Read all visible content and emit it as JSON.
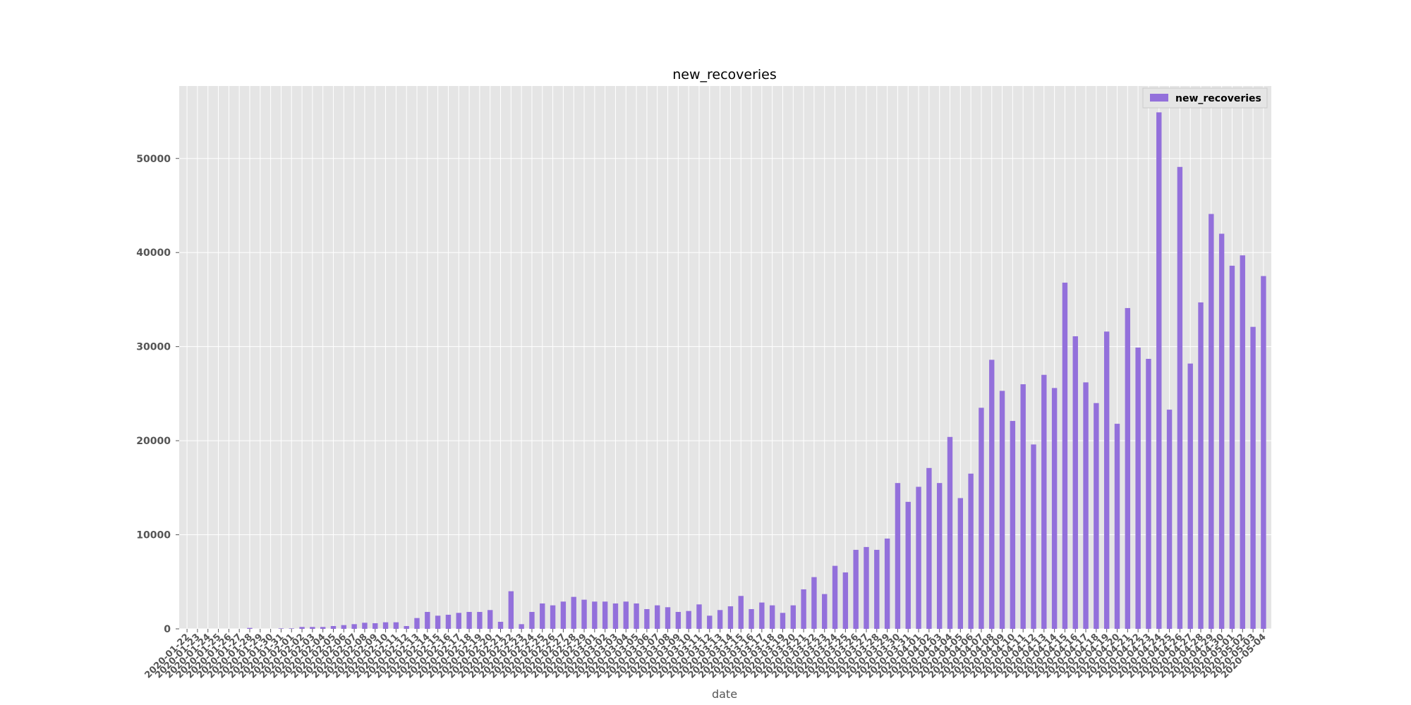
{
  "chart_data": {
    "type": "bar",
    "title": "new_recoveries",
    "xlabel": "date",
    "ylabel": "",
    "ylim": [
      0,
      57700
    ],
    "yticks": [
      0,
      10000,
      20000,
      30000,
      40000,
      50000
    ],
    "grid": true,
    "legend_position": "top-right",
    "style": "ggplot",
    "bar_color": "#9370DB",
    "categories": [
      "2020-01-22",
      "2020-01-23",
      "2020-01-24",
      "2020-01-25",
      "2020-01-26",
      "2020-01-27",
      "2020-01-28",
      "2020-01-29",
      "2020-01-30",
      "2020-01-31",
      "2020-02-01",
      "2020-02-02",
      "2020-02-03",
      "2020-02-04",
      "2020-02-05",
      "2020-02-06",
      "2020-02-07",
      "2020-02-08",
      "2020-02-09",
      "2020-02-10",
      "2020-02-11",
      "2020-02-12",
      "2020-02-13",
      "2020-02-14",
      "2020-02-15",
      "2020-02-16",
      "2020-02-17",
      "2020-02-18",
      "2020-02-19",
      "2020-02-20",
      "2020-02-21",
      "2020-02-22",
      "2020-02-23",
      "2020-02-24",
      "2020-02-25",
      "2020-02-26",
      "2020-02-27",
      "2020-02-28",
      "2020-02-29",
      "2020-03-01",
      "2020-03-02",
      "2020-03-03",
      "2020-03-04",
      "2020-03-05",
      "2020-03-06",
      "2020-03-07",
      "2020-03-08",
      "2020-03-09",
      "2020-03-10",
      "2020-03-11",
      "2020-03-12",
      "2020-03-13",
      "2020-03-14",
      "2020-03-15",
      "2020-03-16",
      "2020-03-17",
      "2020-03-18",
      "2020-03-19",
      "2020-03-20",
      "2020-03-21",
      "2020-03-22",
      "2020-03-23",
      "2020-03-24",
      "2020-03-25",
      "2020-03-26",
      "2020-03-27",
      "2020-03-28",
      "2020-03-29",
      "2020-03-30",
      "2020-03-31",
      "2020-04-01",
      "2020-04-02",
      "2020-04-03",
      "2020-04-04",
      "2020-04-05",
      "2020-04-06",
      "2020-04-07",
      "2020-04-08",
      "2020-04-09",
      "2020-04-10",
      "2020-04-11",
      "2020-04-12",
      "2020-04-13",
      "2020-04-14",
      "2020-04-15",
      "2020-04-16",
      "2020-04-17",
      "2020-04-18",
      "2020-04-19",
      "2020-04-20",
      "2020-04-21",
      "2020-04-22",
      "2020-04-23",
      "2020-04-24",
      "2020-04-25",
      "2020-04-26",
      "2020-04-27",
      "2020-04-28",
      "2020-04-29",
      "2020-04-30",
      "2020-05-01",
      "2020-05-02",
      "2020-05-03",
      "2020-05-04"
    ],
    "series": [
      {
        "name": "new_recoveries",
        "values": [
          0,
          0,
          0,
          0,
          0,
          0,
          100,
          0,
          0,
          50,
          50,
          200,
          200,
          200,
          300,
          400,
          500,
          650,
          600,
          700,
          700,
          300,
          1150,
          1800,
          1400,
          1500,
          1700,
          1800,
          1800,
          2000,
          750,
          4000,
          500,
          1800,
          2700,
          2500,
          2900,
          3400,
          3100,
          2900,
          2900,
          2700,
          2900,
          2700,
          2100,
          2500,
          2300,
          1800,
          1900,
          2600,
          1400,
          2000,
          2400,
          3500,
          2100,
          2800,
          2500,
          1700,
          2500,
          4200,
          5500,
          3700,
          6700,
          6000,
          8400,
          8700,
          8400,
          9600,
          15500,
          13500,
          15100,
          17100,
          15500,
          20400,
          13900,
          16500,
          23500,
          28600,
          25300,
          22100,
          26000,
          19600,
          27000,
          25600,
          36800,
          31100,
          26200,
          24000,
          31600,
          21800,
          34100,
          29900,
          28700,
          54900,
          23300,
          49100,
          28200,
          34700,
          44100,
          42000,
          38600,
          39700,
          32100,
          37500
        ]
      }
    ]
  }
}
